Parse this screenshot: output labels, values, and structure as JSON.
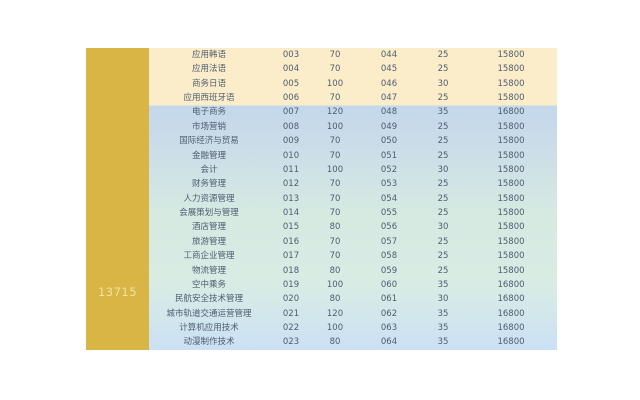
{
  "page": {
    "background": "#ffffff"
  },
  "table": {
    "school_code": "13715",
    "colors": {
      "gold_block": "#d9b545",
      "school_code_text": "#f2e3a0",
      "cream_band": "#fcedca",
      "blue_band_top": "#c4d7eb",
      "blue_band_mid": "#cbdde8",
      "mint_band": "#d6eae2",
      "mint_band_low": "#d8ece5",
      "blue_band_bottom": "#cbe0f4",
      "text": "#4e5d70"
    },
    "rows": [
      {
        "major": "应用韩语",
        "code1": "003",
        "plan1": "70",
        "code2": "044",
        "plan2": "25",
        "fee": "15800"
      },
      {
        "major": "应用法语",
        "code1": "004",
        "plan1": "70",
        "code2": "045",
        "plan2": "25",
        "fee": "15800"
      },
      {
        "major": "商务日语",
        "code1": "005",
        "plan1": "100",
        "code2": "046",
        "plan2": "30",
        "fee": "15800"
      },
      {
        "major": "应用西班牙语",
        "code1": "006",
        "plan1": "70",
        "code2": "047",
        "plan2": "25",
        "fee": "15800"
      },
      {
        "major": "电子商务",
        "code1": "007",
        "plan1": "120",
        "code2": "048",
        "plan2": "35",
        "fee": "16800"
      },
      {
        "major": "市场营销",
        "code1": "008",
        "plan1": "100",
        "code2": "049",
        "plan2": "25",
        "fee": "15800"
      },
      {
        "major": "国际经济与贸易",
        "code1": "009",
        "plan1": "70",
        "code2": "050",
        "plan2": "25",
        "fee": "15800"
      },
      {
        "major": "金融管理",
        "code1": "010",
        "plan1": "70",
        "code2": "051",
        "plan2": "25",
        "fee": "15800"
      },
      {
        "major": "会计",
        "code1": "011",
        "plan1": "100",
        "code2": "052",
        "plan2": "30",
        "fee": "15800"
      },
      {
        "major": "财务管理",
        "code1": "012",
        "plan1": "70",
        "code2": "053",
        "plan2": "25",
        "fee": "15800"
      },
      {
        "major": "人力资源管理",
        "code1": "013",
        "plan1": "70",
        "code2": "054",
        "plan2": "25",
        "fee": "15800"
      },
      {
        "major": "会展策划与管理",
        "code1": "014",
        "plan1": "70",
        "code2": "055",
        "plan2": "25",
        "fee": "15800"
      },
      {
        "major": "酒店管理",
        "code1": "015",
        "plan1": "80",
        "code2": "056",
        "plan2": "30",
        "fee": "15800"
      },
      {
        "major": "旅游管理",
        "code1": "016",
        "plan1": "70",
        "code2": "057",
        "plan2": "25",
        "fee": "15800"
      },
      {
        "major": "工商企业管理",
        "code1": "017",
        "plan1": "70",
        "code2": "058",
        "plan2": "25",
        "fee": "15800"
      },
      {
        "major": "物流管理",
        "code1": "018",
        "plan1": "80",
        "code2": "059",
        "plan2": "25",
        "fee": "15800"
      },
      {
        "major": "空中乘务",
        "code1": "019",
        "plan1": "100",
        "code2": "060",
        "plan2": "35",
        "fee": "16800"
      },
      {
        "major": "民航安全技术管理",
        "code1": "020",
        "plan1": "80",
        "code2": "061",
        "plan2": "30",
        "fee": "16800"
      },
      {
        "major": "城市轨道交通运营管理",
        "code1": "021",
        "plan1": "120",
        "code2": "062",
        "plan2": "35",
        "fee": "16800"
      },
      {
        "major": "计算机应用技术",
        "code1": "022",
        "plan1": "100",
        "code2": "063",
        "plan2": "35",
        "fee": "16800"
      },
      {
        "major": "动漫制作技术",
        "code1": "023",
        "plan1": "80",
        "code2": "064",
        "plan2": "35",
        "fee": "16800"
      }
    ]
  }
}
